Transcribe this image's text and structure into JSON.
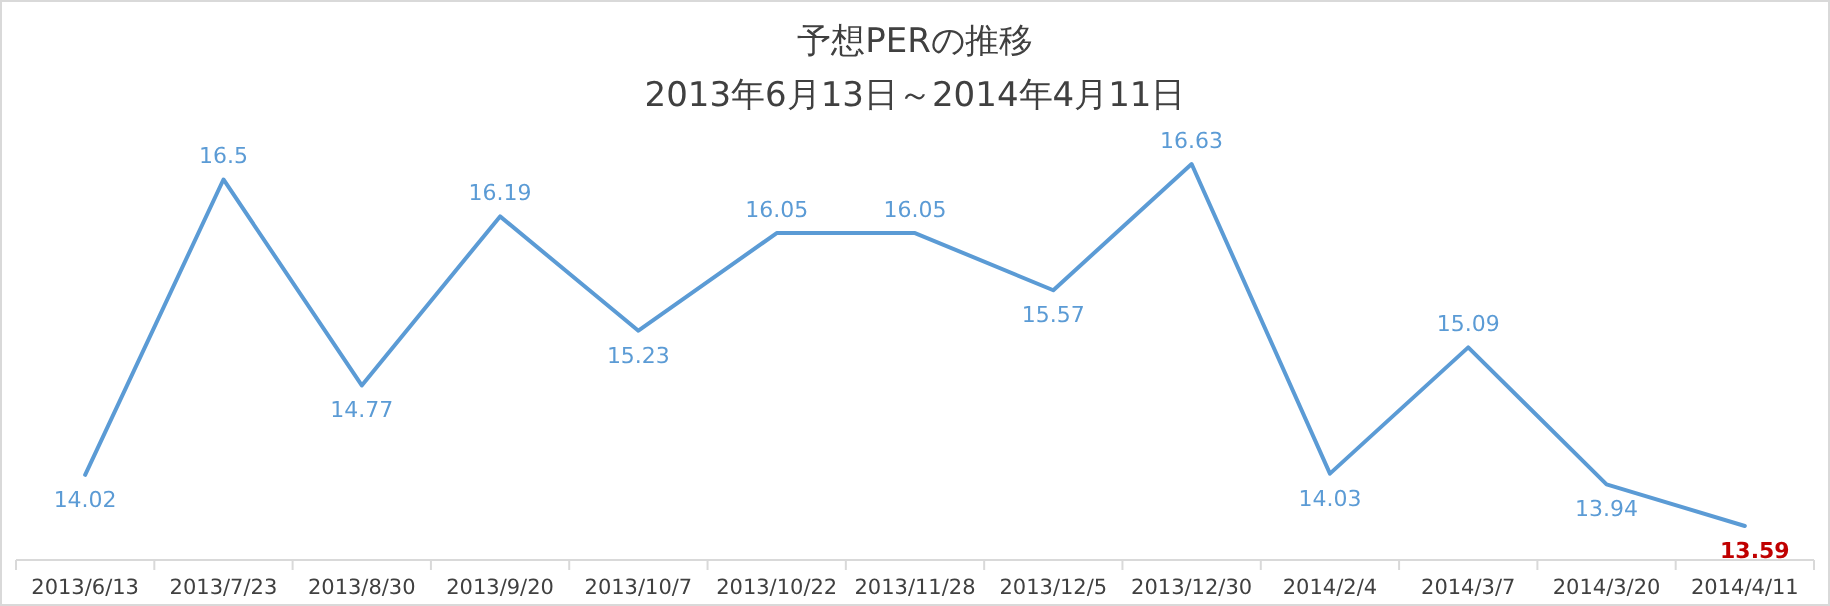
{
  "chart_data": {
    "type": "line",
    "title": "予想PERの推移",
    "subtitle": "2013年6月13日～2014年4月11日",
    "categories": [
      "2013/6/13",
      "2013/7/23",
      "2013/8/30",
      "2013/9/20",
      "2013/10/7",
      "2013/10/22",
      "2013/11/28",
      "2013/12/5",
      "2013/12/30",
      "2014/2/4",
      "2014/3/7",
      "2014/3/20",
      "2014/4/11"
    ],
    "series": [
      {
        "color": "#5b9bd5",
        "values": [
          14.02,
          16.5,
          14.77,
          16.19,
          15.23,
          16.05,
          16.05,
          15.57,
          16.63,
          14.03,
          15.09,
          13.94,
          13.59
        ]
      }
    ],
    "data_labels": true,
    "marker": "none",
    "line_style": "solid"
  }
}
